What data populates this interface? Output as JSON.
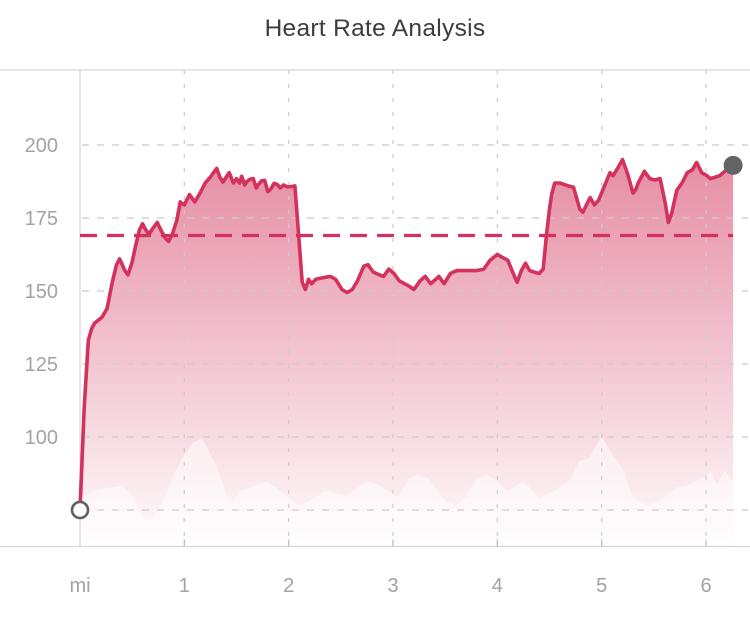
{
  "header": {
    "title": "Heart Rate Analysis"
  },
  "colors": {
    "accent_red": "#d2325b",
    "grid": "#cbcbd0",
    "axis_border": "#d6d6da",
    "zero_axis_line": "#d4d4d8",
    "tick": "#b9b9be",
    "label_gray": "#a2a2a7",
    "title_gray": "#3c3c41",
    "end_dot_gray": "#636366",
    "start_ring_gray": "#5f5f64",
    "elevation_overlay": "rgba(255,255,255,0.5)",
    "background": "#ffffff"
  },
  "chart_data": {
    "type": "area",
    "title": "Heart Rate Analysis",
    "x_axis": {
      "unit_label": "mi",
      "tick_values": [
        1,
        2,
        3,
        4,
        5,
        6
      ],
      "range_miles": [
        0,
        6.42
      ]
    },
    "y_axis": {
      "tick_values": [
        200,
        175,
        150,
        125,
        100
      ],
      "gridline_values": [
        200,
        175,
        150,
        125,
        100,
        75
      ],
      "range_bpm": [
        63,
        226
      ]
    },
    "grid": "dashed",
    "legend": "none",
    "average_line": {
      "value_bpm": 169,
      "style": "dashed"
    },
    "start_point": {
      "mile": 0,
      "bpm": 75,
      "marker": "open-circle"
    },
    "end_point": {
      "mile": 6.26,
      "bpm": 193,
      "marker": "filled-dot"
    },
    "series_mile_bpm": [
      [
        0,
        75
      ],
      [
        0.04,
        110
      ],
      [
        0.08,
        133
      ],
      [
        0.11,
        137
      ],
      [
        0.14,
        139
      ],
      [
        0.21,
        141
      ],
      [
        0.26,
        144
      ],
      [
        0.31,
        153
      ],
      [
        0.35,
        159
      ],
      [
        0.38,
        161
      ],
      [
        0.43,
        157
      ],
      [
        0.46,
        155.5
      ],
      [
        0.5,
        160
      ],
      [
        0.53,
        165
      ],
      [
        0.57,
        171
      ],
      [
        0.6,
        173
      ],
      [
        0.63,
        171
      ],
      [
        0.66,
        169.5
      ],
      [
        0.7,
        171.5
      ],
      [
        0.74,
        173.5
      ],
      [
        0.78,
        170.5
      ],
      [
        0.82,
        168
      ],
      [
        0.85,
        167
      ],
      [
        0.89,
        170
      ],
      [
        0.93,
        174.5
      ],
      [
        0.96,
        180.5
      ],
      [
        1.0,
        179.5
      ],
      [
        1.05,
        183
      ],
      [
        1.1,
        180.5
      ],
      [
        1.15,
        183.5
      ],
      [
        1.2,
        187
      ],
      [
        1.25,
        189
      ],
      [
        1.28,
        190.5
      ],
      [
        1.31,
        192
      ],
      [
        1.34,
        189
      ],
      [
        1.37,
        187.3
      ],
      [
        1.41,
        189.5
      ],
      [
        1.43,
        190.5
      ],
      [
        1.47,
        187
      ],
      [
        1.5,
        188.5
      ],
      [
        1.53,
        187
      ],
      [
        1.55,
        189.3
      ],
      [
        1.58,
        186.3
      ],
      [
        1.6,
        187.5
      ],
      [
        1.63,
        188.3
      ],
      [
        1.66,
        188.5
      ],
      [
        1.69,
        185.3
      ],
      [
        1.71,
        186.5
      ],
      [
        1.74,
        187.7
      ],
      [
        1.77,
        187.9
      ],
      [
        1.8,
        184
      ],
      [
        1.83,
        185
      ],
      [
        1.86,
        186.9
      ],
      [
        1.89,
        186.5
      ],
      [
        1.92,
        185.3
      ],
      [
        1.95,
        186.3
      ],
      [
        1.99,
        185.6
      ],
      [
        2.03,
        185.8
      ],
      [
        2.06,
        186
      ],
      [
        2.13,
        153
      ],
      [
        2.16,
        150.5
      ],
      [
        2.19,
        154
      ],
      [
        2.22,
        152.5
      ],
      [
        2.26,
        154
      ],
      [
        2.32,
        154.5
      ],
      [
        2.4,
        155
      ],
      [
        2.45,
        154
      ],
      [
        2.51,
        150.5
      ],
      [
        2.56,
        149.5
      ],
      [
        2.61,
        150.5
      ],
      [
        2.66,
        153.5
      ],
      [
        2.72,
        158.5
      ],
      [
        2.76,
        159
      ],
      [
        2.81,
        156.5
      ],
      [
        2.87,
        155.5
      ],
      [
        2.91,
        155
      ],
      [
        2.96,
        157.5
      ],
      [
        3.01,
        156
      ],
      [
        3.06,
        153.5
      ],
      [
        3.11,
        152.5
      ],
      [
        3.16,
        151.5
      ],
      [
        3.2,
        150.5
      ],
      [
        3.26,
        153.5
      ],
      [
        3.31,
        155
      ],
      [
        3.36,
        152.5
      ],
      [
        3.41,
        154
      ],
      [
        3.44,
        155
      ],
      [
        3.49,
        152.5
      ],
      [
        3.55,
        156
      ],
      [
        3.61,
        157
      ],
      [
        3.67,
        157
      ],
      [
        3.74,
        157
      ],
      [
        3.8,
        157
      ],
      [
        3.87,
        157.5
      ],
      [
        3.93,
        160.5
      ],
      [
        4.0,
        162.5
      ],
      [
        4.05,
        161.5
      ],
      [
        4.1,
        160.5
      ],
      [
        4.17,
        154.5
      ],
      [
        4.19,
        153
      ],
      [
        4.23,
        157
      ],
      [
        4.27,
        159.5
      ],
      [
        4.31,
        157
      ],
      [
        4.35,
        156.5
      ],
      [
        4.4,
        156
      ],
      [
        4.44,
        157.5
      ],
      [
        4.47,
        169
      ],
      [
        4.5,
        178
      ],
      [
        4.52,
        183
      ],
      [
        4.55,
        187
      ],
      [
        4.6,
        187
      ],
      [
        4.64,
        186.5
      ],
      [
        4.68,
        186
      ],
      [
        4.73,
        185.5
      ],
      [
        4.79,
        178
      ],
      [
        4.82,
        177
      ],
      [
        4.86,
        180
      ],
      [
        4.89,
        182
      ],
      [
        4.93,
        179.5
      ],
      [
        4.97,
        181
      ],
      [
        5.01,
        184.5
      ],
      [
        5.05,
        188
      ],
      [
        5.08,
        190.5
      ],
      [
        5.11,
        189.5
      ],
      [
        5.16,
        192.5
      ],
      [
        5.2,
        195
      ],
      [
        5.25,
        190
      ],
      [
        5.3,
        183.5
      ],
      [
        5.33,
        185
      ],
      [
        5.35,
        187
      ],
      [
        5.41,
        191
      ],
      [
        5.46,
        188.5
      ],
      [
        5.51,
        188
      ],
      [
        5.56,
        188.5
      ],
      [
        5.61,
        180
      ],
      [
        5.64,
        173.5
      ],
      [
        5.67,
        176.5
      ],
      [
        5.72,
        184.5
      ],
      [
        5.77,
        187
      ],
      [
        5.82,
        190.5
      ],
      [
        5.87,
        191.5
      ],
      [
        5.91,
        194
      ],
      [
        5.96,
        190.5
      ],
      [
        6.01,
        189.5
      ],
      [
        6.04,
        188.5
      ],
      [
        6.09,
        189
      ],
      [
        6.13,
        189.5
      ],
      [
        6.18,
        191
      ],
      [
        6.23,
        192
      ],
      [
        6.26,
        193
      ]
    ],
    "elevation_profile_relative": [
      [
        0,
        0.44
      ],
      [
        0.1,
        0.48
      ],
      [
        0.2,
        0.52
      ],
      [
        0.3,
        0.53
      ],
      [
        0.41,
        0.55
      ],
      [
        0.52,
        0.44
      ],
      [
        0.61,
        0.25
      ],
      [
        0.7,
        0.25
      ],
      [
        0.77,
        0.36
      ],
      [
        0.83,
        0.48
      ],
      [
        0.9,
        0.65
      ],
      [
        0.96,
        0.77
      ],
      [
        1.07,
        0.93
      ],
      [
        1.17,
        0.98
      ],
      [
        1.24,
        0.85
      ],
      [
        1.31,
        0.73
      ],
      [
        1.41,
        0.45
      ],
      [
        1.47,
        0.41
      ],
      [
        1.53,
        0.5
      ],
      [
        1.6,
        0.52
      ],
      [
        1.7,
        0.56
      ],
      [
        1.79,
        0.59
      ],
      [
        1.88,
        0.53
      ],
      [
        2.0,
        0.44
      ],
      [
        2.1,
        0.36
      ],
      [
        2.2,
        0.41
      ],
      [
        2.35,
        0.5
      ],
      [
        2.45,
        0.48
      ],
      [
        2.55,
        0.45
      ],
      [
        2.65,
        0.52
      ],
      [
        2.75,
        0.59
      ],
      [
        2.85,
        0.56
      ],
      [
        2.95,
        0.5
      ],
      [
        3.05,
        0.44
      ],
      [
        3.16,
        0.62
      ],
      [
        3.25,
        0.65
      ],
      [
        3.35,
        0.61
      ],
      [
        3.5,
        0.41
      ],
      [
        3.6,
        0.36
      ],
      [
        3.7,
        0.45
      ],
      [
        3.8,
        0.61
      ],
      [
        3.9,
        0.65
      ],
      [
        4.0,
        0.59
      ],
      [
        4.1,
        0.5
      ],
      [
        4.25,
        0.59
      ],
      [
        4.4,
        0.44
      ],
      [
        4.55,
        0.5
      ],
      [
        4.7,
        0.61
      ],
      [
        4.78,
        0.77
      ],
      [
        4.88,
        0.8
      ],
      [
        5.0,
        1.0
      ],
      [
        5.08,
        0.86
      ],
      [
        5.2,
        0.71
      ],
      [
        5.3,
        0.44
      ],
      [
        5.45,
        0.36
      ],
      [
        5.6,
        0.44
      ],
      [
        5.72,
        0.53
      ],
      [
        5.85,
        0.56
      ],
      [
        5.95,
        0.62
      ],
      [
        6.0,
        0.62
      ],
      [
        6.05,
        0.68
      ],
      [
        6.1,
        0.56
      ],
      [
        6.18,
        0.68
      ],
      [
        6.26,
        0.59
      ]
    ]
  }
}
